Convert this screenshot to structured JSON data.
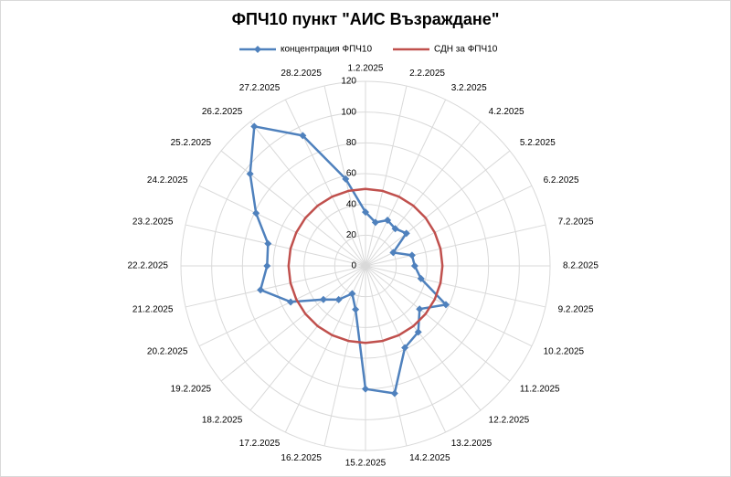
{
  "chart_data": {
    "type": "radar",
    "title": "ФПЧ10 пункт \"АИС Възраждане\"",
    "categories": [
      "1.2.2025",
      "2.2.2025",
      "3.2.2025",
      "4.2.2025",
      "5.2.2025",
      "6.2.2025",
      "7.2.2025",
      "8.2.2025",
      "9.2.2025",
      "10.2.2025",
      "11.2.2025",
      "12.2.2025",
      "13.2.2025",
      "14.2.2025",
      "15.2.2025",
      "16.2.2025",
      "17.2.2025",
      "18.2.2025",
      "19.2.2025",
      "20.2.2025",
      "21.2.2025",
      "22.2.2025",
      "23.2.2025",
      "24.2.2025",
      "25.2.2025",
      "26.2.2025",
      "27.2.2025",
      "28.2.2025"
    ],
    "series": [
      {
        "name": "концентрация ФПЧ10",
        "color": "#4f81bd",
        "marker": "diamond",
        "values": [
          35,
          29,
          33,
          31,
          34,
          20,
          31,
          32,
          37,
          58,
          45,
          55,
          59,
          85,
          80,
          29,
          20,
          28,
          35,
          54,
          70,
          64,
          65,
          79,
          96,
          116,
          94,
          58
        ]
      },
      {
        "name": "СДН за ФПЧ10",
        "color": "#c0504d",
        "marker": "none",
        "values": [
          50,
          50,
          50,
          50,
          50,
          50,
          50,
          50,
          50,
          50,
          50,
          50,
          50,
          50,
          50,
          50,
          50,
          50,
          50,
          50,
          50,
          50,
          50,
          50,
          50,
          50,
          50,
          50
        ]
      }
    ],
    "rlim": [
      0,
      120
    ],
    "rticks": [
      0,
      20,
      40,
      60,
      80,
      100,
      120
    ],
    "grid": true,
    "legend": "top"
  }
}
